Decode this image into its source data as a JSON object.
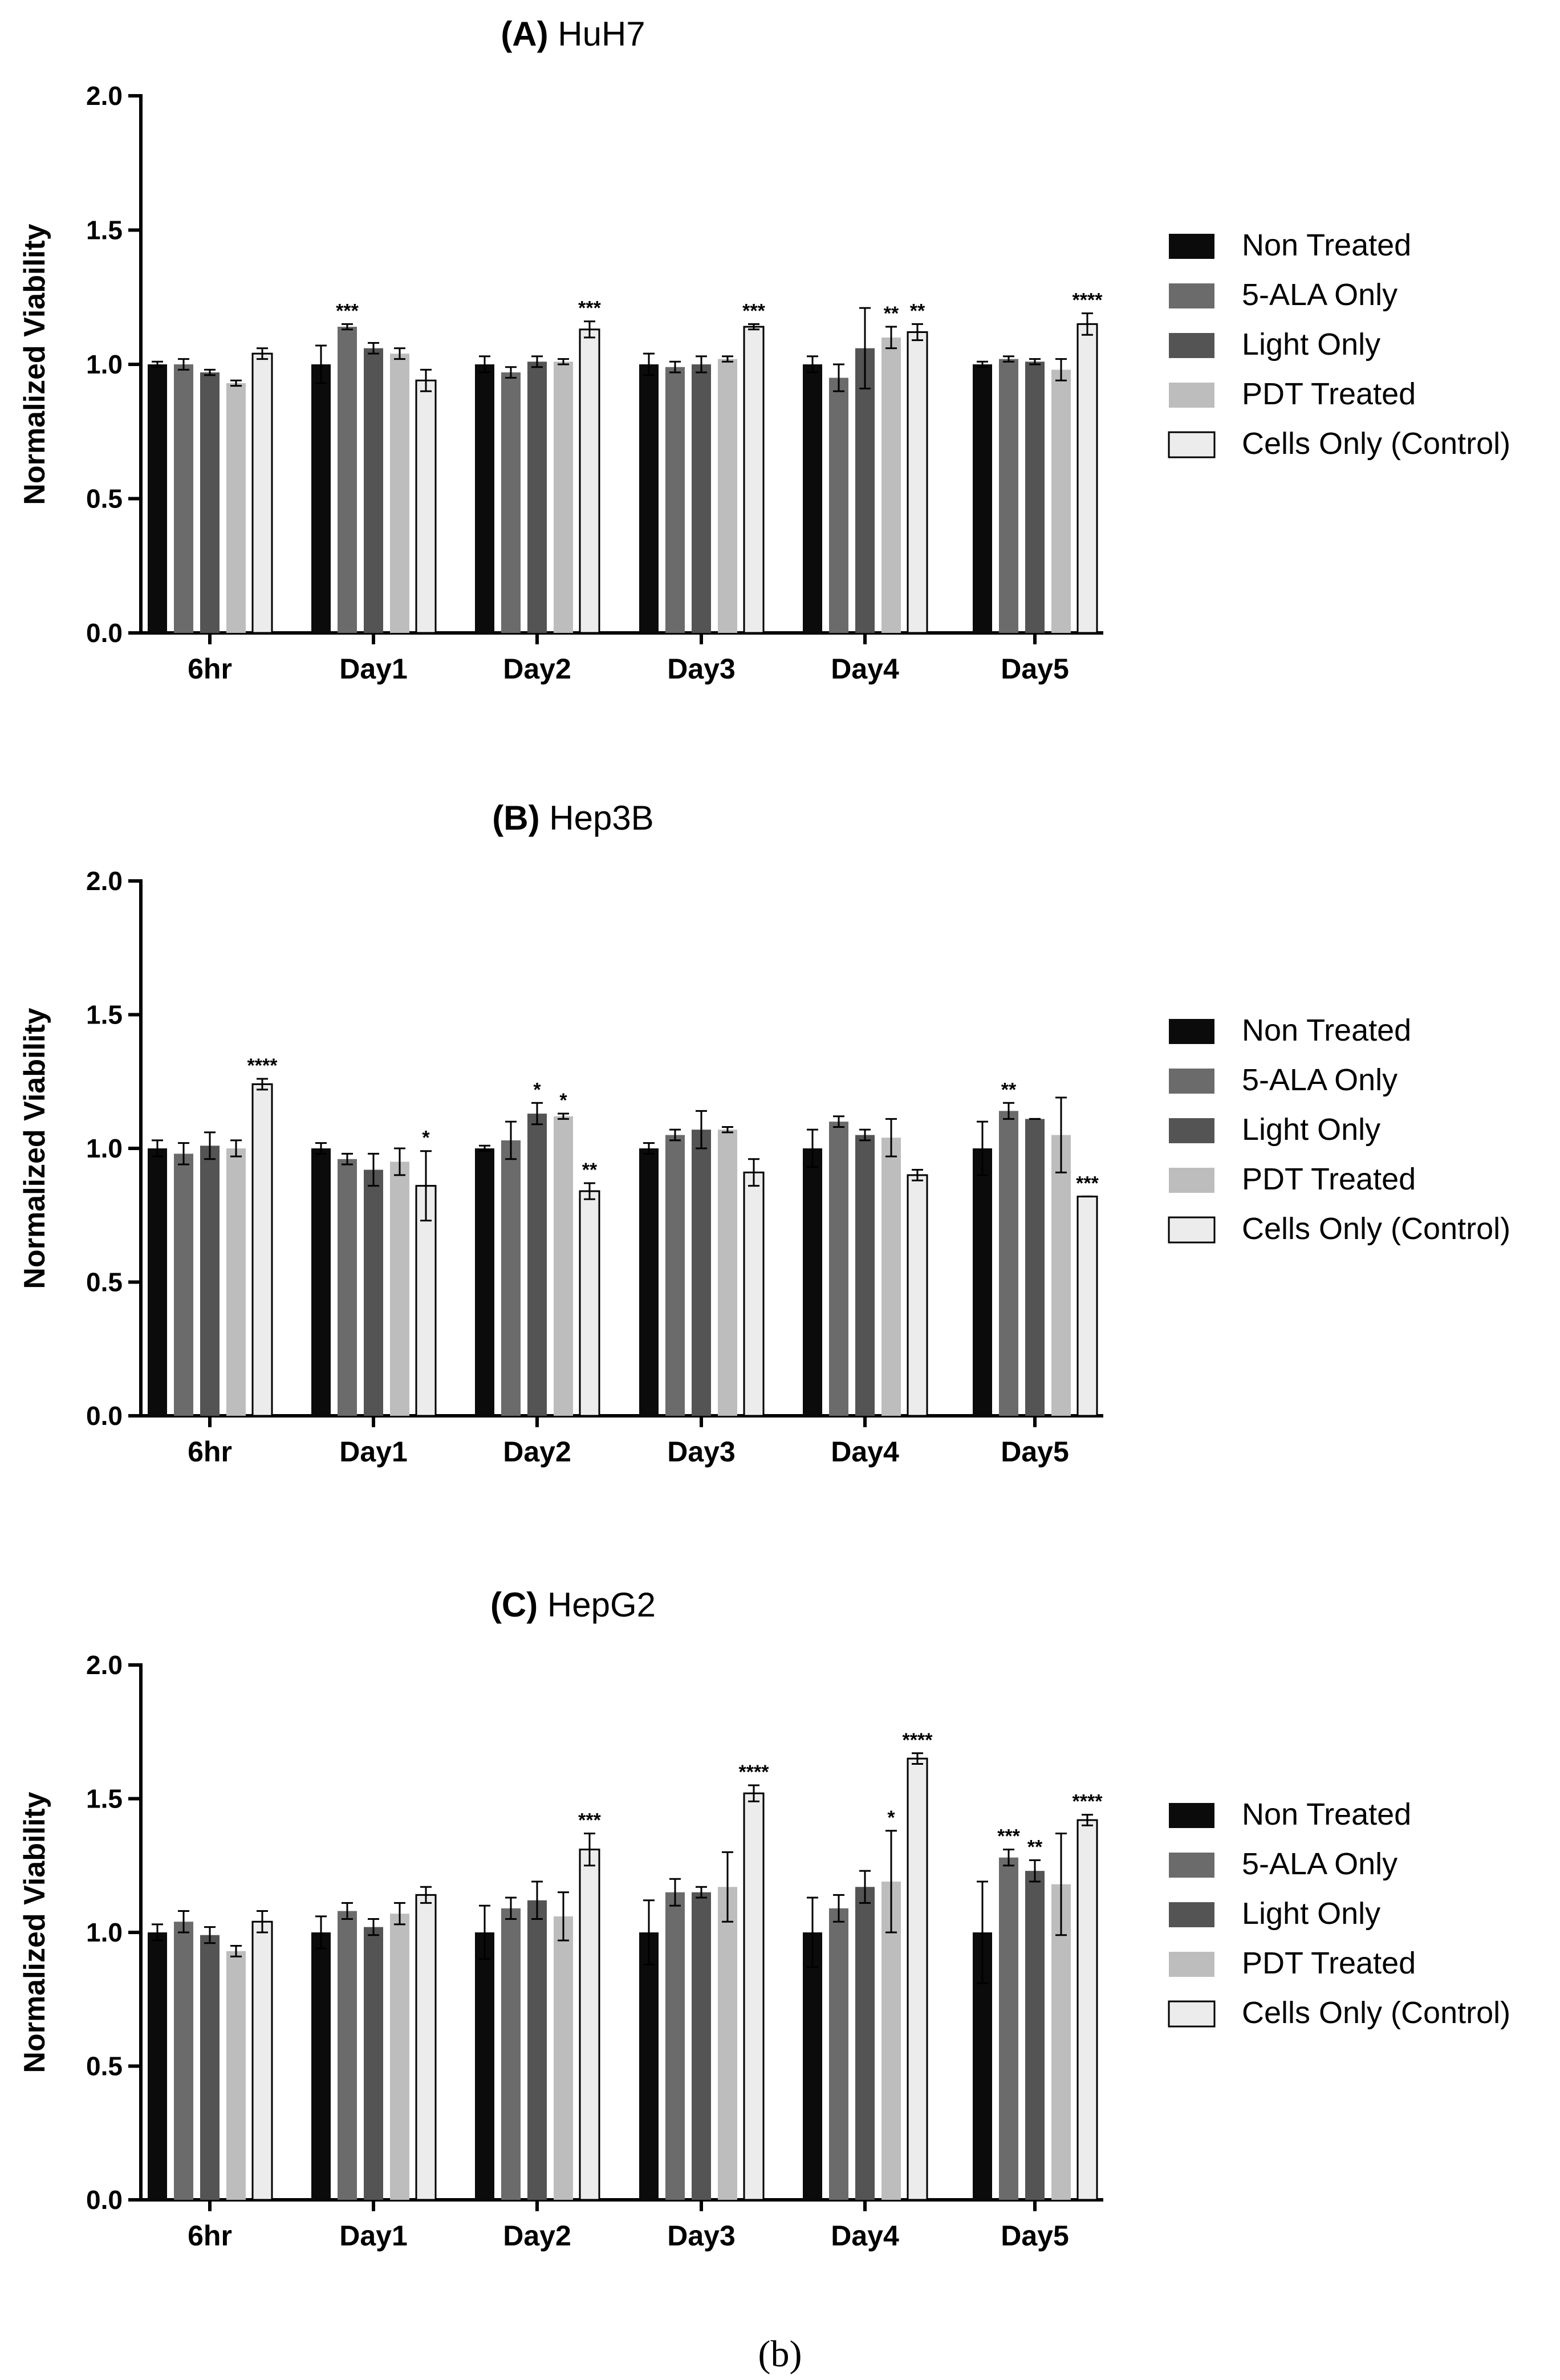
{
  "figure_label": "(b)",
  "colors": {
    "axis": "#000000",
    "series": [
      "#0b0b0b",
      "#6b6b6b",
      "#545454",
      "#bdbdbd",
      "#ececec"
    ],
    "control_stroke": "#000000"
  },
  "chart_data": [
    {
      "type": "bar",
      "title_prefix": "(A)",
      "title_name": "HuH7",
      "ylabel": "Normalized Viability",
      "xlabel": "",
      "ylim": [
        0,
        2.0
      ],
      "yticks": [
        "0.0",
        "0.5",
        "1.0",
        "1.5",
        "2.0"
      ],
      "categories": [
        "6hr",
        "Day1",
        "Day2",
        "Day3",
        "Day4",
        "Day5"
      ],
      "legend_position": "right",
      "series": [
        {
          "name": "Non Treated",
          "values": [
            1.0,
            1.0,
            1.0,
            1.0,
            1.0,
            1.0
          ],
          "errors": [
            0.01,
            0.07,
            0.03,
            0.04,
            0.03,
            0.01
          ],
          "sig": [
            "",
            "",
            "",
            "",
            "",
            ""
          ]
        },
        {
          "name": "5-ALA Only",
          "values": [
            1.0,
            1.14,
            0.97,
            0.99,
            0.95,
            1.02
          ],
          "errors": [
            0.02,
            0.01,
            0.02,
            0.02,
            0.05,
            0.01
          ],
          "sig": [
            "",
            "***",
            "",
            "",
            "",
            ""
          ]
        },
        {
          "name": "Light Only",
          "values": [
            0.97,
            1.06,
            1.01,
            1.0,
            1.06,
            1.01
          ],
          "errors": [
            0.01,
            0.02,
            0.02,
            0.03,
            0.15,
            0.01
          ],
          "sig": [
            "",
            "",
            "",
            "",
            "",
            ""
          ]
        },
        {
          "name": "PDT Treated",
          "values": [
            0.93,
            1.04,
            1.01,
            1.02,
            1.1,
            0.98
          ],
          "errors": [
            0.01,
            0.02,
            0.01,
            0.01,
            0.04,
            0.04
          ],
          "sig": [
            "",
            "",
            "",
            "",
            "**",
            ""
          ]
        },
        {
          "name": "Cells Only (Control)",
          "values": [
            1.04,
            0.94,
            1.13,
            1.14,
            1.12,
            1.15
          ],
          "errors": [
            0.02,
            0.04,
            0.03,
            0.01,
            0.03,
            0.04
          ],
          "sig": [
            "",
            "",
            "***",
            "***",
            "**",
            "****"
          ]
        }
      ]
    },
    {
      "type": "bar",
      "title_prefix": "(B)",
      "title_name": "Hep3B",
      "ylabel": "Normalized Viability",
      "xlabel": "",
      "ylim": [
        0,
        2.0
      ],
      "yticks": [
        "0.0",
        "0.5",
        "1.0",
        "1.5",
        "2.0"
      ],
      "categories": [
        "6hr",
        "Day1",
        "Day2",
        "Day3",
        "Day4",
        "Day5"
      ],
      "legend_position": "right",
      "series": [
        {
          "name": "Non Treated",
          "values": [
            1.0,
            1.0,
            1.0,
            1.0,
            1.0,
            1.0
          ],
          "errors": [
            0.03,
            0.02,
            0.01,
            0.02,
            0.07,
            0.1
          ],
          "sig": [
            "",
            "",
            "",
            "",
            "",
            ""
          ]
        },
        {
          "name": "5-ALA Only",
          "values": [
            0.98,
            0.96,
            1.03,
            1.05,
            1.1,
            1.14
          ],
          "errors": [
            0.04,
            0.02,
            0.07,
            0.02,
            0.02,
            0.03
          ],
          "sig": [
            "",
            "",
            "",
            "",
            "",
            "**"
          ]
        },
        {
          "name": "Light Only",
          "values": [
            1.01,
            0.92,
            1.13,
            1.07,
            1.05,
            1.11
          ],
          "errors": [
            0.05,
            0.06,
            0.04,
            0.07,
            0.02,
            0.0
          ],
          "sig": [
            "",
            "",
            "*",
            "",
            "",
            ""
          ]
        },
        {
          "name": "PDT Treated",
          "values": [
            1.0,
            0.95,
            1.12,
            1.07,
            1.04,
            1.05
          ],
          "errors": [
            0.03,
            0.05,
            0.01,
            0.01,
            0.07,
            0.14
          ],
          "sig": [
            "",
            "",
            "*",
            "",
            "",
            ""
          ]
        },
        {
          "name": "Cells Only (Control)",
          "values": [
            1.24,
            0.86,
            0.84,
            0.91,
            0.9,
            0.82
          ],
          "errors": [
            0.02,
            0.13,
            0.03,
            0.05,
            0.02,
            0.0
          ],
          "sig": [
            "****",
            "*",
            "**",
            "",
            "",
            "***"
          ]
        }
      ]
    },
    {
      "type": "bar",
      "title_prefix": "(C)",
      "title_name": "HepG2",
      "ylabel": "Normalized Viability",
      "xlabel": "",
      "ylim": [
        0,
        2.0
      ],
      "yticks": [
        "0.0",
        "0.5",
        "1.0",
        "1.5",
        "2.0"
      ],
      "categories": [
        "6hr",
        "Day1",
        "Day2",
        "Day3",
        "Day4",
        "Day5"
      ],
      "legend_position": "right",
      "series": [
        {
          "name": "Non Treated",
          "values": [
            1.0,
            1.0,
            1.0,
            1.0,
            1.0,
            1.0
          ],
          "errors": [
            0.03,
            0.06,
            0.1,
            0.12,
            0.13,
            0.19
          ],
          "sig": [
            "",
            "",
            "",
            "",
            "",
            ""
          ]
        },
        {
          "name": "5-ALA Only",
          "values": [
            1.04,
            1.08,
            1.09,
            1.15,
            1.09,
            1.28
          ],
          "errors": [
            0.04,
            0.03,
            0.04,
            0.05,
            0.05,
            0.03
          ],
          "sig": [
            "",
            "",
            "",
            "",
            "",
            "***"
          ]
        },
        {
          "name": "Light Only",
          "values": [
            0.99,
            1.02,
            1.12,
            1.15,
            1.17,
            1.23
          ],
          "errors": [
            0.03,
            0.03,
            0.07,
            0.02,
            0.06,
            0.04
          ],
          "sig": [
            "",
            "",
            "",
            "",
            "",
            "**"
          ]
        },
        {
          "name": "PDT Treated",
          "values": [
            0.93,
            1.07,
            1.06,
            1.17,
            1.19,
            1.18
          ],
          "errors": [
            0.02,
            0.04,
            0.09,
            0.13,
            0.19,
            0.19
          ],
          "sig": [
            "",
            "",
            "",
            "",
            "*",
            ""
          ]
        },
        {
          "name": "Cells Only (Control)",
          "values": [
            1.04,
            1.14,
            1.31,
            1.52,
            1.65,
            1.42
          ],
          "errors": [
            0.04,
            0.03,
            0.06,
            0.03,
            0.02,
            0.02
          ],
          "sig": [
            "",
            "",
            "***",
            "****",
            "****",
            "****"
          ]
        }
      ]
    }
  ]
}
